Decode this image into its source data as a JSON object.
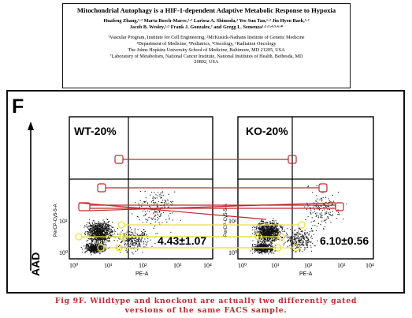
{
  "header": {
    "title": "Mitochondrial Autophagy is a HIF-1-dependent Adaptive Metabolic Response to Hypoxia",
    "authors_line1": "Huafeng Zhang,¹·² Marta Bosch-Marce,¹·² Larissa A. Shimoda,³ Yee Sun Tan,¹·² Jin Hyen Baek,¹·²",
    "authors_line2": "Jacob B. Wesley,¹·² Frank J. Gonzalez,⁷ and Gregg L. Semenza¹·²·³·⁴·⁵·⁶·*",
    "affil1": "¹Vascular Program, Institute for Cell Engineering, ²McKusick-Nathans Institute of Genetic Medicine",
    "affil2": "³Department of Medicine, ⁴Pediatrics, ⁵Oncology, ⁶Radiation Oncology",
    "affil3": "The Johns Hopkins University School of Medicine, Baltimore, MD 21205, USA",
    "affil4": "⁷Laboratory of Metabolism, National Cancer Institute, National Institutes of Health, Bethesda, MD",
    "affil5": "20892, USA"
  },
  "figure": {
    "panel_letter": "F",
    "y_axis_label": "AAD",
    "left_plot": {
      "condition": "WT-20%",
      "value": "4.43±1.07",
      "x_axis_label": "PE-A",
      "y_axis_label": "PerCP-Cy5-5-A",
      "x_ticks": [
        "10⁰",
        "10¹",
        "10²",
        "10³",
        "10⁴"
      ],
      "y_ticks": [
        "10⁰",
        "10¹"
      ]
    },
    "right_plot": {
      "condition": "KO-20%",
      "value": "6.10±0.56",
      "x_axis_label": "PE-A",
      "y_axis_label": "PerCP-Cy5-5-A",
      "x_ticks": [
        "10⁰",
        "10¹",
        "10²",
        "10³",
        "10⁴"
      ],
      "y_ticks": [
        "10⁰",
        "10¹"
      ]
    },
    "colors": {
      "red_annotation": "#c1272d",
      "yellow_annotation": "#e8e23a",
      "dots": "#111111"
    }
  },
  "caption": {
    "line1": "Fig 9F. Wildtype and knockout are actually two differently gated",
    "line2": "versions of the same FACS sample."
  }
}
